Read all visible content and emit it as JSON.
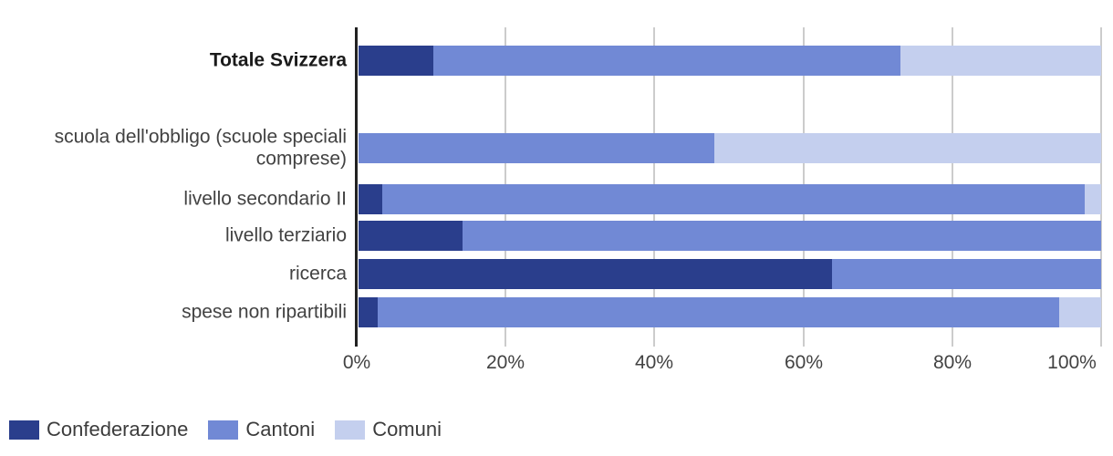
{
  "chart_data": {
    "type": "bar",
    "orientation": "horizontal",
    "stacked": true,
    "unit": "%",
    "categories": [
      "Totale Svizzera",
      "scuola dell'obbligo (scuole speciali comprese)",
      "livello secondario II",
      "livello terziario",
      "ricerca",
      "spese non ripartibili"
    ],
    "emphasized_category": "Totale Svizzera",
    "series": [
      {
        "name": "Confederazione",
        "color": "#2a3e8c",
        "values": [
          10.1,
          0,
          3.2,
          14.0,
          63.7,
          2.6
        ]
      },
      {
        "name": "Cantoni",
        "color": "#7189d5",
        "values": [
          62.9,
          47.9,
          94.6,
          86.0,
          36.3,
          91.7
        ]
      },
      {
        "name": "Comuni",
        "color": "#c4cfee",
        "values": [
          27.0,
          52.1,
          2.2,
          0,
          0,
          5.7
        ]
      }
    ],
    "xlim": [
      0,
      100
    ],
    "x_ticks": [
      "0%",
      "20%",
      "40%",
      "60%",
      "80%",
      "100%"
    ],
    "grid": true,
    "axis_color": "#212121",
    "gridline_color": "#cccccc",
    "legend_position": "bottom-left"
  }
}
